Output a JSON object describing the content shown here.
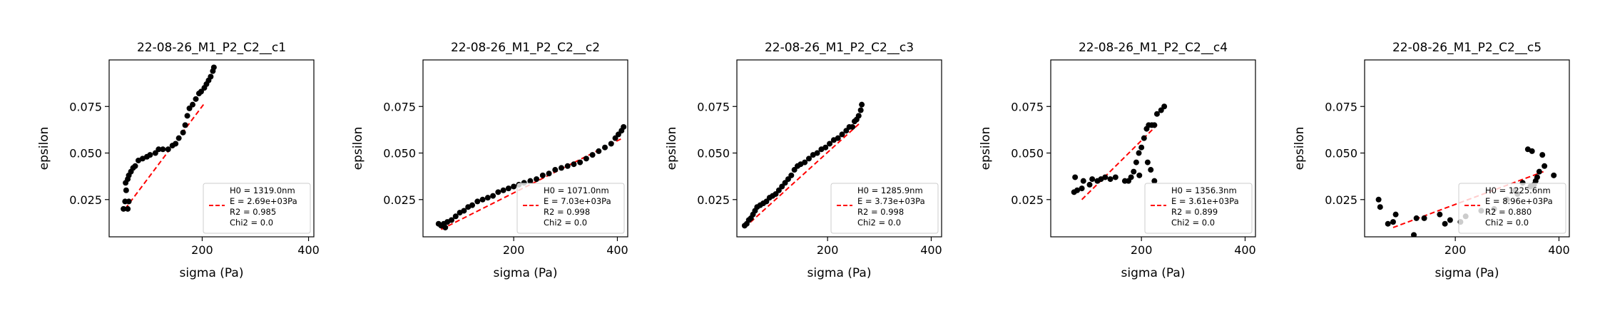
{
  "chart_data": [
    {
      "type": "scatter",
      "title": "22-08-26_M1_P2_C2__c1",
      "xlabel": "sigma (Pa)",
      "ylabel": "epsilon",
      "xlim": [
        25,
        410
      ],
      "ylim": [
        0.005,
        0.1
      ],
      "xticks": [
        {
          "v": 200,
          "label": "200"
        },
        {
          "v": 400,
          "label": "400"
        }
      ],
      "yticks": [
        {
          "v": 0.025,
          "label": "0.025"
        },
        {
          "v": 0.05,
          "label": "0.050"
        },
        {
          "v": 0.075,
          "label": "0.075"
        }
      ],
      "legend": {
        "placement": "lower-right",
        "lines": [
          "H0 = 1319.0nm",
          "E = 2.69e+03Pa",
          "R2 = 0.985",
          "Chi2 = 0.0"
        ]
      },
      "fit": {
        "x": [
          55,
          205
        ],
        "y": [
          0.02,
          0.077
        ]
      },
      "points": [
        [
          52,
          0.02
        ],
        [
          55,
          0.024
        ],
        [
          57,
          0.03
        ],
        [
          56,
          0.034
        ],
        [
          60,
          0.036
        ],
        [
          62,
          0.038
        ],
        [
          66,
          0.04
        ],
        [
          70,
          0.042
        ],
        [
          74,
          0.043
        ],
        [
          80,
          0.046
        ],
        [
          88,
          0.047
        ],
        [
          96,
          0.048
        ],
        [
          102,
          0.049
        ],
        [
          112,
          0.05
        ],
        [
          118,
          0.052
        ],
        [
          126,
          0.052
        ],
        [
          136,
          0.052
        ],
        [
          144,
          0.054
        ],
        [
          150,
          0.055
        ],
        [
          156,
          0.058
        ],
        [
          164,
          0.061
        ],
        [
          168,
          0.065
        ],
        [
          172,
          0.07
        ],
        [
          176,
          0.074
        ],
        [
          182,
          0.076
        ],
        [
          188,
          0.079
        ],
        [
          194,
          0.082
        ],
        [
          198,
          0.083
        ],
        [
          204,
          0.085
        ],
        [
          208,
          0.087
        ],
        [
          212,
          0.089
        ],
        [
          216,
          0.091
        ],
        [
          220,
          0.094
        ],
        [
          222,
          0.096
        ],
        [
          60,
          0.02
        ],
        [
          62,
          0.024
        ]
      ],
      "colors": {
        "points": "#000000",
        "fit": "#ff0000"
      }
    },
    {
      "type": "scatter",
      "title": "22-08-26_M1_P2_C2__c2",
      "xlabel": "sigma (Pa)",
      "ylabel": "epsilon",
      "xlim": [
        25,
        420
      ],
      "ylim": [
        0.005,
        0.1
      ],
      "xticks": [
        {
          "v": 200,
          "label": "200"
        },
        {
          "v": 400,
          "label": "400"
        }
      ],
      "yticks": [
        {
          "v": 0.025,
          "label": "0.025"
        },
        {
          "v": 0.05,
          "label": "0.050"
        },
        {
          "v": 0.075,
          "label": "0.075"
        }
      ],
      "legend": {
        "placement": "lower-right",
        "lines": [
          "H0 = 1071.0nm",
          "E = 7.03e+03Pa",
          "R2 = 0.998",
          "Chi2 = 0.0"
        ]
      },
      "fit": {
        "x": [
          60,
          410
        ],
        "y": [
          0.009,
          0.058
        ]
      },
      "points": [
        [
          55,
          0.012
        ],
        [
          60,
          0.011
        ],
        [
          65,
          0.012
        ],
        [
          68,
          0.01
        ],
        [
          72,
          0.013
        ],
        [
          80,
          0.014
        ],
        [
          88,
          0.016
        ],
        [
          96,
          0.018
        ],
        [
          104,
          0.019
        ],
        [
          112,
          0.021
        ],
        [
          120,
          0.022
        ],
        [
          130,
          0.024
        ],
        [
          140,
          0.025
        ],
        [
          150,
          0.026
        ],
        [
          160,
          0.027
        ],
        [
          170,
          0.029
        ],
        [
          180,
          0.03
        ],
        [
          190,
          0.031
        ],
        [
          200,
          0.032
        ],
        [
          210,
          0.033
        ],
        [
          220,
          0.034
        ],
        [
          232,
          0.035
        ],
        [
          244,
          0.036
        ],
        [
          256,
          0.038
        ],
        [
          268,
          0.039
        ],
        [
          280,
          0.041
        ],
        [
          292,
          0.042
        ],
        [
          304,
          0.043
        ],
        [
          316,
          0.044
        ],
        [
          328,
          0.045
        ],
        [
          340,
          0.047
        ],
        [
          352,
          0.049
        ],
        [
          364,
          0.051
        ],
        [
          376,
          0.053
        ],
        [
          388,
          0.055
        ],
        [
          396,
          0.058
        ],
        [
          402,
          0.06
        ],
        [
          408,
          0.062
        ],
        [
          412,
          0.064
        ]
      ],
      "colors": {
        "points": "#000000",
        "fit": "#ff0000"
      }
    },
    {
      "type": "scatter",
      "title": "22-08-26_M1_P2_C2__c3",
      "xlabel": "sigma (Pa)",
      "ylabel": "epsilon",
      "xlim": [
        25,
        420
      ],
      "ylim": [
        0.005,
        0.1
      ],
      "xticks": [
        {
          "v": 200,
          "label": "200"
        },
        {
          "v": 400,
          "label": "400"
        }
      ],
      "yticks": [
        {
          "v": 0.025,
          "label": "0.025"
        },
        {
          "v": 0.05,
          "label": "0.050"
        },
        {
          "v": 0.075,
          "label": "0.075"
        }
      ],
      "legend": {
        "placement": "lower-right",
        "lines": [
          "H0 = 1285.9nm",
          "E = 3.73e+03Pa",
          "R2 = 0.998",
          "Chi2 = 0.0"
        ]
      },
      "fit": {
        "x": [
          40,
          262
        ],
        "y": [
          0.01,
          0.066
        ]
      },
      "points": [
        [
          40,
          0.011
        ],
        [
          44,
          0.012
        ],
        [
          48,
          0.014
        ],
        [
          52,
          0.015
        ],
        [
          56,
          0.017
        ],
        [
          60,
          0.019
        ],
        [
          64,
          0.021
        ],
        [
          70,
          0.022
        ],
        [
          76,
          0.023
        ],
        [
          82,
          0.024
        ],
        [
          88,
          0.026
        ],
        [
          94,
          0.027
        ],
        [
          100,
          0.028
        ],
        [
          106,
          0.03
        ],
        [
          112,
          0.032
        ],
        [
          118,
          0.034
        ],
        [
          124,
          0.036
        ],
        [
          130,
          0.038
        ],
        [
          136,
          0.041
        ],
        [
          142,
          0.043
        ],
        [
          148,
          0.044
        ],
        [
          156,
          0.045
        ],
        [
          164,
          0.047
        ],
        [
          172,
          0.049
        ],
        [
          180,
          0.05
        ],
        [
          188,
          0.052
        ],
        [
          196,
          0.053
        ],
        [
          204,
          0.055
        ],
        [
          212,
          0.057
        ],
        [
          220,
          0.058
        ],
        [
          228,
          0.06
        ],
        [
          236,
          0.062
        ],
        [
          242,
          0.064
        ],
        [
          248,
          0.064
        ],
        [
          252,
          0.067
        ],
        [
          256,
          0.068
        ],
        [
          260,
          0.07
        ],
        [
          264,
          0.073
        ],
        [
          266,
          0.076
        ]
      ],
      "colors": {
        "points": "#000000",
        "fit": "#ff0000"
      }
    },
    {
      "type": "scatter",
      "title": "22-08-26_M1_P2_C2__c4",
      "xlabel": "sigma (Pa)",
      "ylabel": "epsilon",
      "xlim": [
        25,
        420
      ],
      "ylim": [
        0.005,
        0.1
      ],
      "xticks": [
        {
          "v": 200,
          "label": "200"
        },
        {
          "v": 400,
          "label": "400"
        }
      ],
      "yticks": [
        {
          "v": 0.025,
          "label": "0.025"
        },
        {
          "v": 0.05,
          "label": "0.050"
        },
        {
          "v": 0.075,
          "label": "0.075"
        }
      ],
      "legend": {
        "placement": "lower-right",
        "lines": [
          "H0 = 1356.3nm",
          "E = 3.61e+03Pa",
          "R2 = 0.899",
          "Chi2 = 0.0"
        ]
      },
      "fit": {
        "x": [
          85,
          230
        ],
        "y": [
          0.025,
          0.065
        ]
      },
      "points": [
        [
          70,
          0.029
        ],
        [
          72,
          0.037
        ],
        [
          76,
          0.03
        ],
        [
          85,
          0.031
        ],
        [
          88,
          0.035
        ],
        [
          100,
          0.033
        ],
        [
          105,
          0.036
        ],
        [
          115,
          0.035
        ],
        [
          122,
          0.036
        ],
        [
          130,
          0.037
        ],
        [
          140,
          0.036
        ],
        [
          150,
          0.037
        ],
        [
          168,
          0.035
        ],
        [
          175,
          0.035
        ],
        [
          180,
          0.037
        ],
        [
          185,
          0.04
        ],
        [
          190,
          0.045
        ],
        [
          195,
          0.05
        ],
        [
          200,
          0.053
        ],
        [
          205,
          0.058
        ],
        [
          210,
          0.063
        ],
        [
          214,
          0.065
        ],
        [
          220,
          0.065
        ],
        [
          225,
          0.065
        ],
        [
          230,
          0.071
        ],
        [
          238,
          0.073
        ],
        [
          244,
          0.075
        ],
        [
          212,
          0.045
        ],
        [
          218,
          0.041
        ],
        [
          225,
          0.035
        ],
        [
          196,
          0.038
        ]
      ],
      "colors": {
        "points": "#000000",
        "fit": "#ff0000"
      }
    },
    {
      "type": "scatter",
      "title": "22-08-26_M1_P2_C2__c5",
      "xlabel": "sigma (Pa)",
      "ylabel": "epsilon",
      "xlim": [
        25,
        420
      ],
      "ylim": [
        0.005,
        0.1
      ],
      "xticks": [
        {
          "v": 200,
          "label": "200"
        },
        {
          "v": 400,
          "label": "400"
        }
      ],
      "yticks": [
        {
          "v": 0.025,
          "label": "0.025"
        },
        {
          "v": 0.05,
          "label": "0.050"
        },
        {
          "v": 0.075,
          "label": "0.075"
        }
      ],
      "legend": {
        "placement": "lower-right",
        "lines": [
          "H0 = 1225.6nm",
          "E = 8.96e+03Pa",
          "R2 = 0.880",
          "Chi2 = 0.0"
        ]
      },
      "fit": {
        "x": [
          80,
          370
        ],
        "y": [
          0.01,
          0.04
        ]
      },
      "points": [
        [
          52,
          0.025
        ],
        [
          55,
          0.021
        ],
        [
          70,
          0.012
        ],
        [
          80,
          0.013
        ],
        [
          85,
          0.017
        ],
        [
          120,
          0.006
        ],
        [
          125,
          0.015
        ],
        [
          140,
          0.015
        ],
        [
          170,
          0.017
        ],
        [
          180,
          0.012
        ],
        [
          190,
          0.014
        ],
        [
          210,
          0.013
        ],
        [
          220,
          0.016
        ],
        [
          250,
          0.019
        ],
        [
          275,
          0.02
        ],
        [
          300,
          0.025
        ],
        [
          315,
          0.03
        ],
        [
          330,
          0.034
        ],
        [
          340,
          0.052
        ],
        [
          348,
          0.051
        ],
        [
          352,
          0.033
        ],
        [
          355,
          0.035
        ],
        [
          358,
          0.037
        ],
        [
          362,
          0.04
        ],
        [
          368,
          0.049
        ],
        [
          372,
          0.043
        ],
        [
          390,
          0.038
        ],
        [
          320,
          0.028
        ],
        [
          345,
          0.032
        ]
      ],
      "colors": {
        "points": "#000000",
        "fit": "#ff0000"
      }
    }
  ]
}
